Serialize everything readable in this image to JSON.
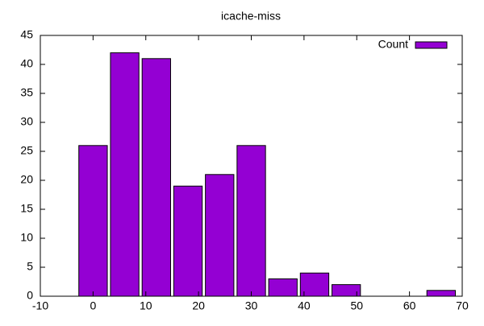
{
  "chart_data": {
    "type": "histogram",
    "title": "icache-miss",
    "bins": [
      -3,
      3,
      9,
      15,
      21,
      27,
      33,
      39,
      45,
      51,
      57,
      63,
      69
    ],
    "series": [
      {
        "name": "Count",
        "color": "#9400d3",
        "values": [
          26,
          42,
          41,
          19,
          21,
          26,
          3,
          4,
          2,
          0,
          0,
          1
        ]
      }
    ],
    "xlim": [
      -10,
      70
    ],
    "xticks": [
      -10,
      0,
      10,
      20,
      30,
      40,
      50,
      60,
      70
    ],
    "ylim": [
      0,
      45
    ],
    "yticks": [
      0,
      5,
      10,
      15,
      20,
      25,
      30,
      35,
      40,
      45
    ],
    "grid": false,
    "legend": "top-right"
  }
}
